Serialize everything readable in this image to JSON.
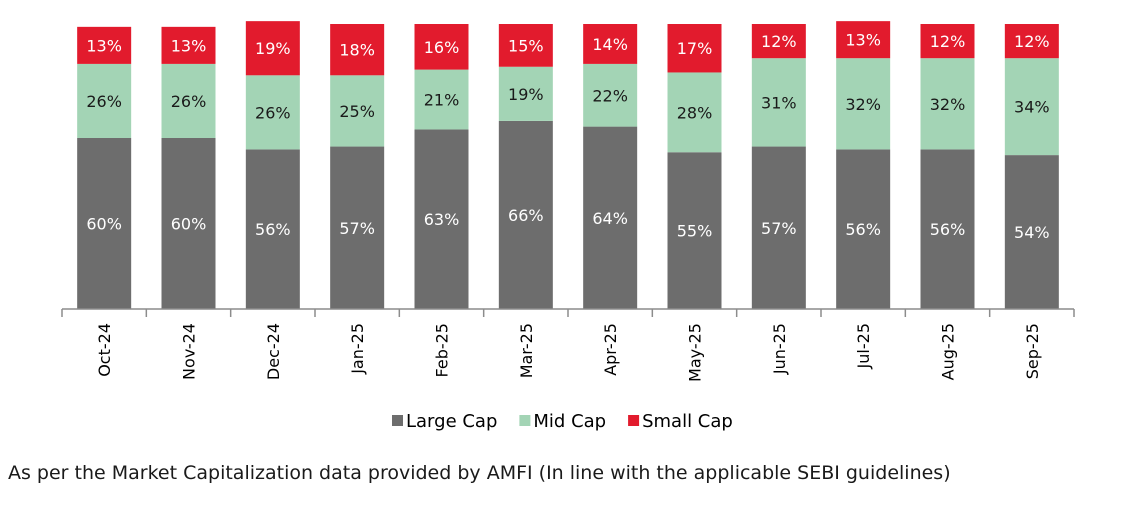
{
  "chart_data": {
    "type": "bar",
    "stacked": true,
    "categories": [
      "Oct-24",
      "Nov-24",
      "Dec-24",
      "Jan-25",
      "Feb-25",
      "Mar-25",
      "Apr-25",
      "May-25",
      "Jun-25",
      "Jul-25",
      "Aug-25",
      "Sep-25"
    ],
    "series": [
      {
        "name": "Large Cap",
        "color": "#6d6d6d",
        "label_color": "#ffffff",
        "values": [
          60,
          60,
          56,
          57,
          63,
          66,
          64,
          55,
          57,
          56,
          56,
          54
        ]
      },
      {
        "name": "Mid Cap",
        "color": "#a3d4b5",
        "label_color": "#1a1a1a",
        "values": [
          26,
          26,
          26,
          25,
          21,
          19,
          22,
          28,
          31,
          32,
          32,
          34
        ]
      },
      {
        "name": "Small Cap",
        "color": "#e21b2d",
        "label_color": "#ffffff",
        "values": [
          13,
          13,
          19,
          18,
          16,
          15,
          14,
          17,
          12,
          13,
          12,
          12
        ]
      }
    ],
    "value_suffix": "%",
    "ylim": [
      0,
      100
    ],
    "grid": false,
    "legend_position": "bottom"
  },
  "footnote": "As per the Market Capitalization data provided by AMFI (In line with the applicable SEBI guidelines)"
}
